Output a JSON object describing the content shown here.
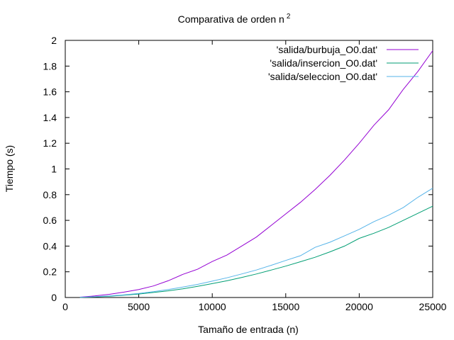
{
  "chart_data": {
    "type": "line",
    "title": "Comparativa de orden n",
    "title_superscript": "2",
    "xlabel": "Tamaño de entrada (n)",
    "ylabel": "Tiempo (s)",
    "xlim": [
      0,
      25000
    ],
    "ylim": [
      0,
      2
    ],
    "xticks": [
      0,
      5000,
      10000,
      15000,
      20000,
      25000
    ],
    "yticks": [
      0,
      0.2,
      0.4,
      0.6,
      0.8,
      1,
      1.2,
      1.4,
      1.6,
      1.8,
      2
    ],
    "ytick_labels": [
      "0",
      "0.2",
      "0.4",
      "0.6",
      "0.8",
      "1",
      "1.2",
      "1.4",
      "1.6",
      "1.8",
      "2"
    ],
    "grid": false,
    "legend_position": "top-right",
    "series": [
      {
        "name": "'salida/burbuja_O0.dat'",
        "color": "#9400d3",
        "x": [
          1000,
          2000,
          3000,
          4000,
          5000,
          6000,
          7000,
          8000,
          9000,
          10000,
          11000,
          12000,
          13000,
          14000,
          15000,
          16000,
          17000,
          18000,
          19000,
          20000,
          21000,
          22000,
          23000,
          24000,
          25000
        ],
        "y": [
          0.003,
          0.012,
          0.025,
          0.042,
          0.062,
          0.09,
          0.13,
          0.18,
          0.22,
          0.28,
          0.33,
          0.4,
          0.47,
          0.56,
          0.65,
          0.74,
          0.84,
          0.95,
          1.07,
          1.2,
          1.34,
          1.46,
          1.62,
          1.76,
          1.92
        ]
      },
      {
        "name": "'salida/insercion_O0.dat'",
        "color": "#009e73",
        "x": [
          1000,
          2000,
          3000,
          4000,
          5000,
          6000,
          7000,
          8000,
          9000,
          10000,
          11000,
          12000,
          13000,
          14000,
          15000,
          16000,
          17000,
          18000,
          19000,
          20000,
          21000,
          22000,
          23000,
          24000,
          25000
        ],
        "y": [
          0.001,
          0.005,
          0.01,
          0.018,
          0.027,
          0.039,
          0.052,
          0.068,
          0.087,
          0.108,
          0.13,
          0.156,
          0.183,
          0.213,
          0.244,
          0.278,
          0.313,
          0.355,
          0.4,
          0.46,
          0.5,
          0.545,
          0.6,
          0.655,
          0.71
        ]
      },
      {
        "name": "'salida/seleccion_O0.dat'",
        "color": "#56b4e9",
        "x": [
          1000,
          2000,
          3000,
          4000,
          5000,
          6000,
          7000,
          8000,
          9000,
          10000,
          11000,
          12000,
          13000,
          14000,
          15000,
          16000,
          17000,
          18000,
          19000,
          20000,
          21000,
          22000,
          23000,
          24000,
          25000
        ],
        "y": [
          0.001,
          0.006,
          0.012,
          0.021,
          0.032,
          0.046,
          0.062,
          0.081,
          0.102,
          0.127,
          0.153,
          0.183,
          0.214,
          0.25,
          0.288,
          0.325,
          0.39,
          0.43,
          0.48,
          0.53,
          0.59,
          0.64,
          0.7,
          0.78,
          0.85
        ]
      }
    ]
  }
}
